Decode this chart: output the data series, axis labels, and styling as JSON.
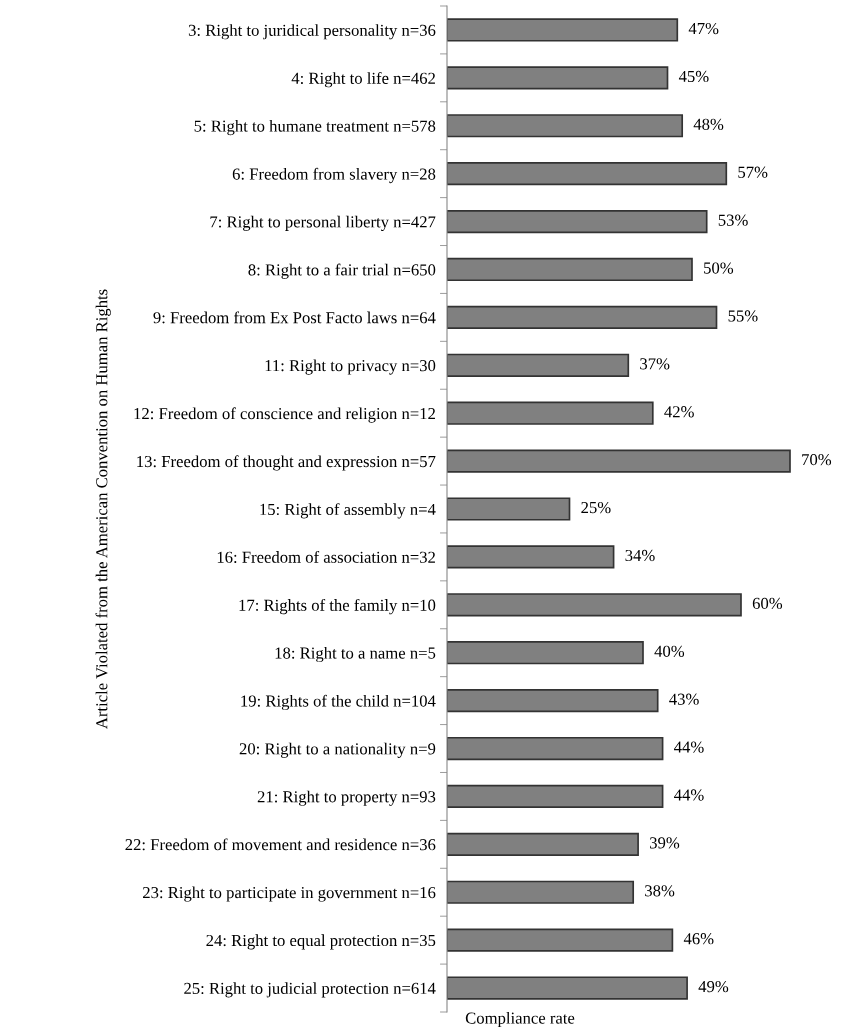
{
  "chart_data": {
    "type": "bar",
    "orientation": "horizontal",
    "xlabel": "Compliance rate",
    "ylabel": "Article Violated from the American Convention on Human Rights",
    "categories": [
      "3: Right to juridical personality n=36",
      "4: Right to life n=462",
      "5: Right to humane treatment n=578",
      "6: Freedom from slavery n=28",
      "7: Right to personal liberty n=427",
      "8: Right to a fair trial n=650",
      "9: Freedom from Ex Post Facto laws n=64",
      "11: Right to privacy n=30",
      "12: Freedom of conscience and religion n=12",
      "13: Freedom of thought and expression n=57",
      "15: Right of assembly n=4",
      "16: Freedom of association n=32",
      "17: Rights of the family n=10",
      "18: Right to a name n=5",
      "19: Rights of the child n=104",
      "20: Right to a nationality n=9",
      "21: Right to property n=93",
      "22: Freedom of movement and residence n=36",
      "23: Right to participate in government n=16",
      "24: Right to equal protection n=35",
      "25: Right to judicial protection n=614"
    ],
    "values": [
      47,
      45,
      48,
      57,
      53,
      50,
      55,
      37,
      42,
      70,
      25,
      34,
      60,
      40,
      43,
      44,
      44,
      39,
      38,
      46,
      49
    ],
    "value_labels": [
      "47%",
      "45%",
      "48%",
      "57%",
      "53%",
      "50%",
      "55%",
      "37%",
      "42%",
      "70%",
      "25%",
      "34%",
      "60%",
      "40%",
      "43%",
      "44%",
      "44%",
      "39%",
      "38%",
      "46%",
      "49%"
    ],
    "color": "#808080",
    "tick_labels": "y",
    "grid": false,
    "legend": false
  }
}
